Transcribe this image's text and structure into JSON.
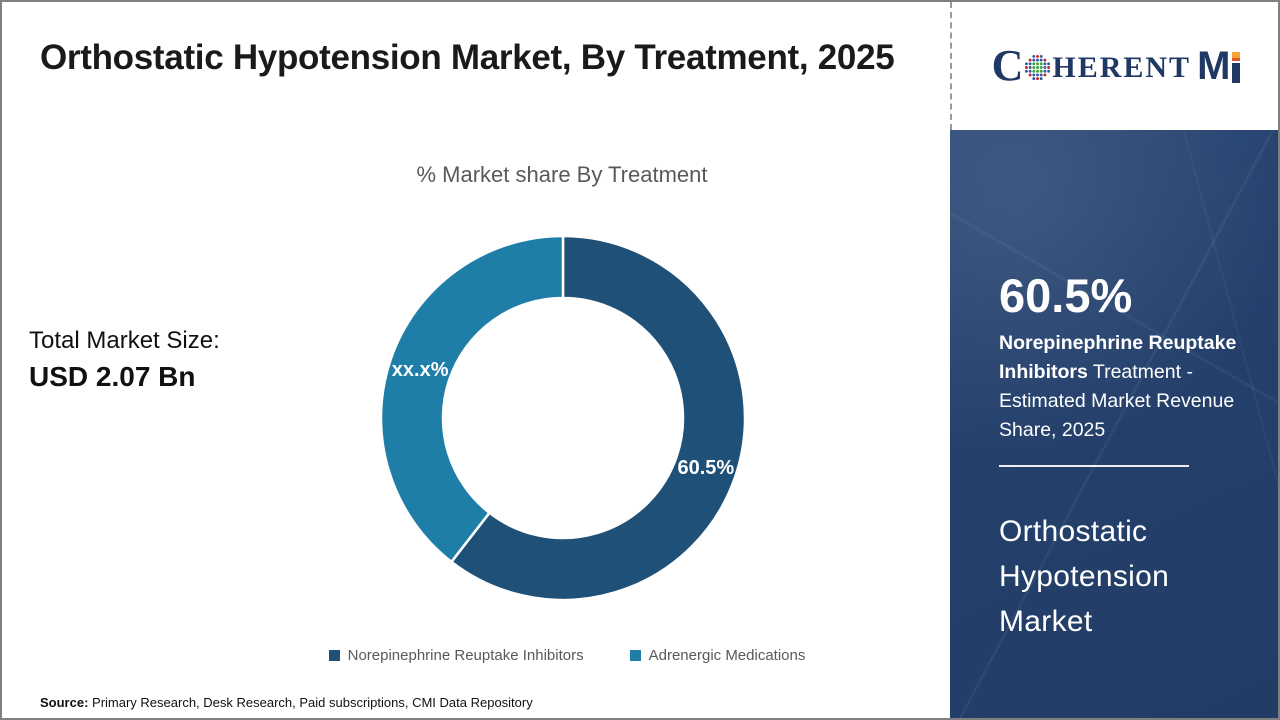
{
  "slide": {
    "title": "Orthostatic Hypotension Market, By Treatment, 2025",
    "total_market_label": "Total Market Size:",
    "total_market_value": "USD 2.07 Bn",
    "source_label": "Source:",
    "source_text": " Primary Research, Desk Research, Paid subscriptions, CMI Data Repository"
  },
  "chart_data": {
    "type": "pie",
    "subtype": "donut",
    "title": "% Market share By Treatment",
    "categories": [
      "Norepinephrine Reuptake Inhibitors",
      "Adrenergic Medications"
    ],
    "values": [
      60.5,
      39.5
    ],
    "segments": [
      {
        "name": "Norepinephrine Reuptake Inhibitors",
        "value": 60.5,
        "display_label": "60.5%",
        "color": "#1e5078"
      },
      {
        "name": "Adrenergic Medications",
        "value": 39.5,
        "display_label": "xx.x%",
        "color": "#1f7ea8"
      }
    ],
    "start_angle_deg": 0,
    "clockwise": true,
    "inner_radius_ratio": 0.66,
    "separator_color": "#ffffff",
    "legend_position": "bottom"
  },
  "sidebar": {
    "stat_value": "60.5%",
    "stat_bold": "Norepinephrine Reuptake Inhibitors",
    "stat_rest": " Treatment - Estimated Market Revenue Share, 2025",
    "panel_title": "Orthostatic Hypotension Market",
    "bg_color": "#24406b"
  },
  "logo": {
    "c": "C",
    "rest": "HERENT",
    "m": "M",
    "globe_colors": {
      "green": "#3ba535",
      "blue": "#2d5ba8",
      "red": "#cc2128"
    },
    "navy": "#1f3864",
    "accent_orange": "#e87722"
  }
}
